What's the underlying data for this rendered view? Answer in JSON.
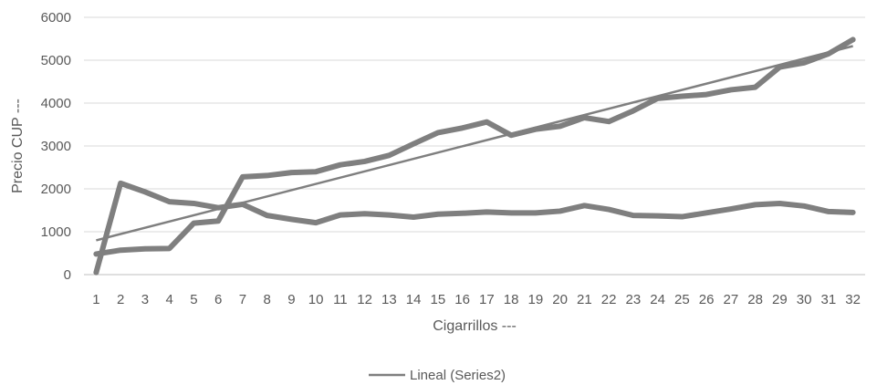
{
  "chart_data": {
    "type": "line",
    "title": "",
    "xlabel": "Cigarrillos ---",
    "ylabel": "Precio CUP ---",
    "categories": [
      "1",
      "2",
      "3",
      "4",
      "5",
      "6",
      "7",
      "8",
      "9",
      "10",
      "11",
      "12",
      "13",
      "14",
      "15",
      "16",
      "17",
      "18",
      "19",
      "20",
      "21",
      "22",
      "23",
      "24",
      "25",
      "26",
      "27",
      "28",
      "29",
      "30",
      "31",
      "32"
    ],
    "ylim": [
      0,
      6000
    ],
    "yticks": [
      "0",
      "1000",
      "2000",
      "3000",
      "4000",
      "5000",
      "6000"
    ],
    "grid": true,
    "series": [
      {
        "values": [
          50,
          2130,
          1930,
          1700,
          1660,
          1560,
          1640,
          1380,
          1290,
          1210,
          1390,
          1420,
          1390,
          1340,
          1410,
          1430,
          1460,
          1440,
          1440,
          1480,
          1610,
          1520,
          1380,
          1370,
          1350,
          1440,
          1530,
          1630,
          1660,
          1600,
          1470,
          1450
        ],
        "color": "#7f7f7f"
      },
      {
        "values": [
          480,
          570,
          600,
          610,
          1200,
          1250,
          2280,
          2310,
          2380,
          2400,
          2560,
          2640,
          2780,
          3050,
          3310,
          3420,
          3560,
          3250,
          3390,
          3460,
          3660,
          3570,
          3820,
          4110,
          4160,
          4200,
          4310,
          4370,
          4840,
          4940,
          5150,
          5480
        ],
        "color": "#7f7f7f"
      }
    ],
    "trendline": {
      "name": "Lineal (Series2)",
      "start": 800,
      "end": 5330,
      "color": "#7f7f7f"
    },
    "legend": {
      "position": "bottom",
      "label": "Lineal (Series2)"
    }
  }
}
